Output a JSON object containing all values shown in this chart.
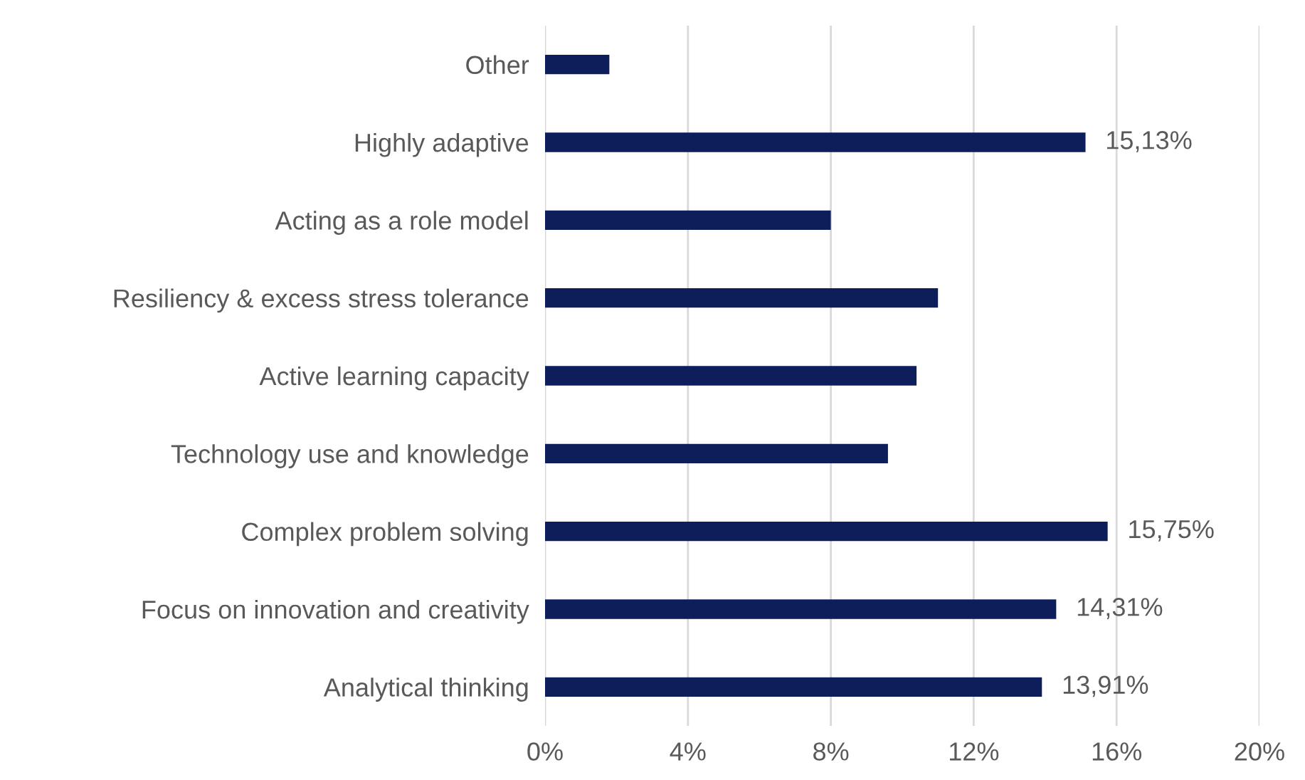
{
  "chart_data": {
    "type": "bar",
    "orientation": "horizontal",
    "categories": [
      "Other",
      "Highly adaptive",
      "Acting as a role model",
      "Resiliency & excess stress tolerance",
      "Active learning capacity",
      "Technology use and knowledge",
      "Complex problem solving",
      "Focus on innovation and creativity",
      "Analytical thinking"
    ],
    "values": [
      1.8,
      15.13,
      8.0,
      11.0,
      10.4,
      9.6,
      15.75,
      14.31,
      13.91
    ],
    "value_labels": [
      null,
      "15,13%",
      null,
      null,
      null,
      null,
      "15,75%",
      "14,31%",
      "13,91%"
    ],
    "color": "#0e1e5b",
    "xlim": [
      0,
      20
    ],
    "xticks": [
      {
        "value": 0,
        "label": "0%"
      },
      {
        "value": 4,
        "label": "4%"
      },
      {
        "value": 8,
        "label": "8%"
      },
      {
        "value": 12,
        "label": "12%"
      },
      {
        "value": 16,
        "label": "16%"
      },
      {
        "value": 20,
        "label": "20%"
      }
    ],
    "grid": "x"
  }
}
